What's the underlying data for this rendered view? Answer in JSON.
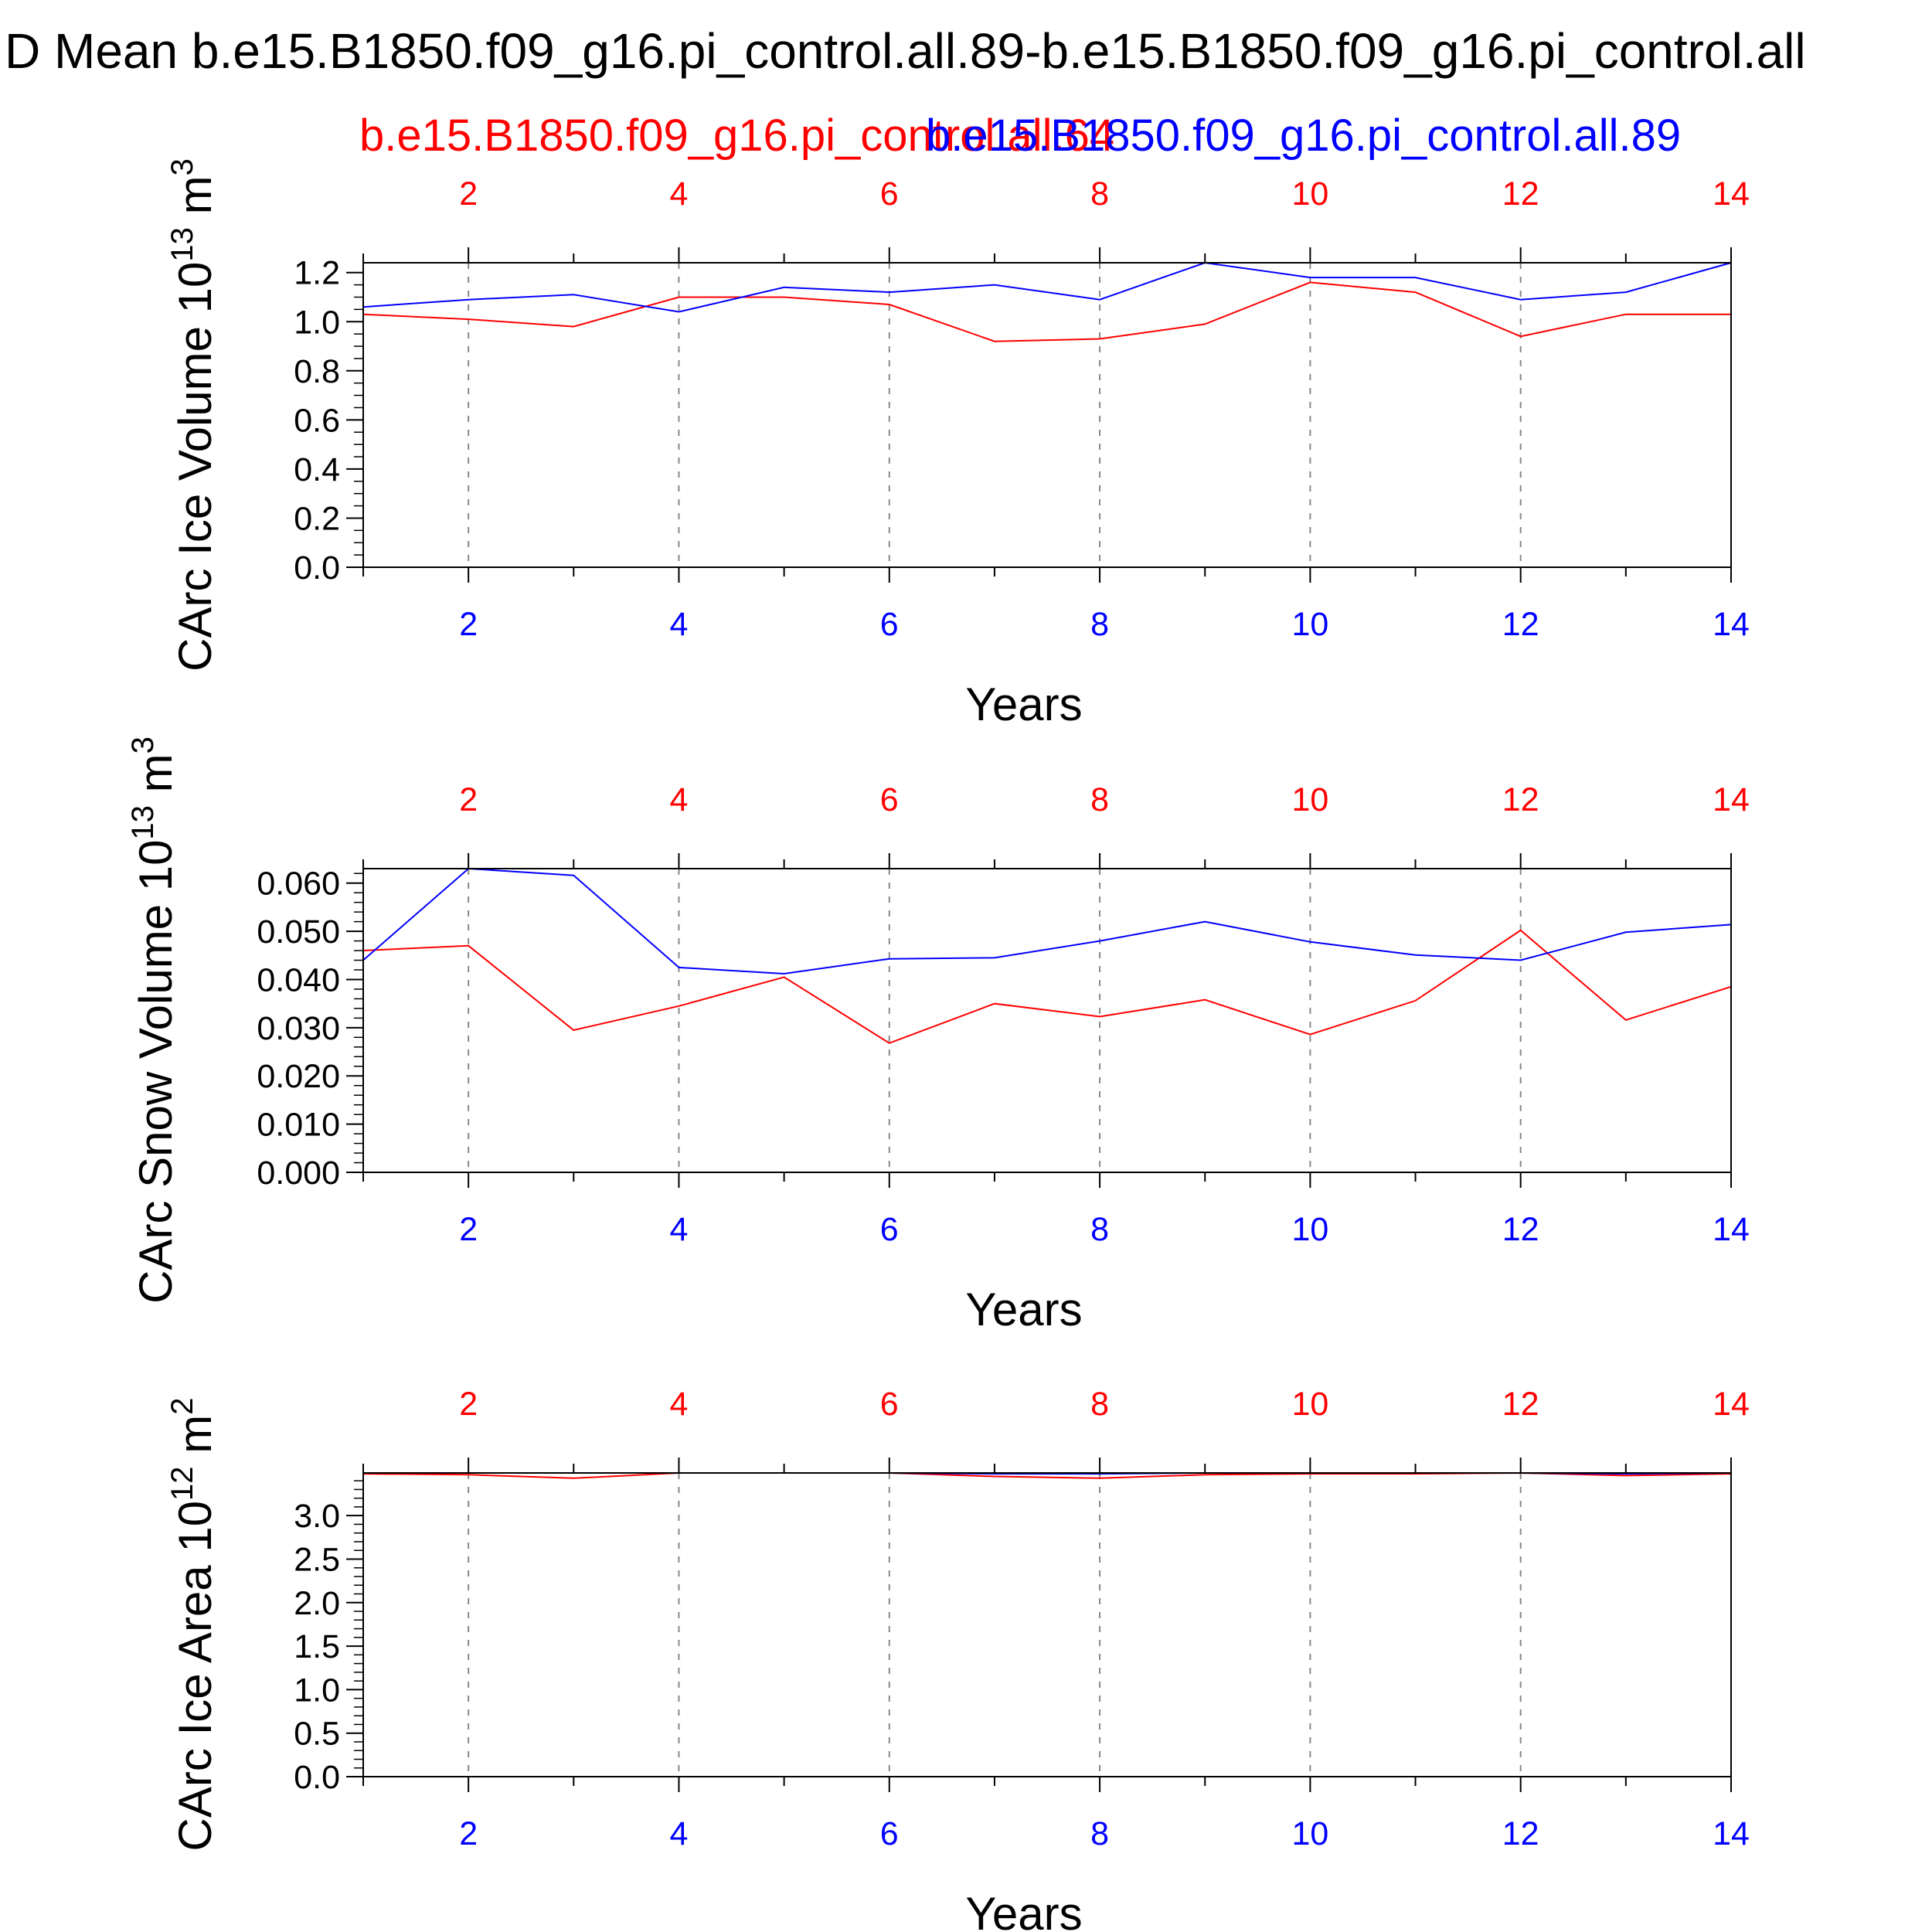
{
  "title": "D Mean b.e15.B1850.f09_g16.pi_control.all.89-b.e15.B1850.f09_g16.pi_control.all",
  "case_names": {
    "red": "b.e15.B1850.f09_g16.pi_control.all.64",
    "blue": "b.e15.B1850.f09_g16.pi_control.all.89"
  },
  "colors": {
    "series_red": "#ff0000",
    "series_blue": "#0000ff",
    "axis": "#000000",
    "grid": "#888888"
  },
  "chart_data": [
    {
      "type": "line",
      "name": "ice-volume",
      "ylabel_main": "CArc Ice Volume 10",
      "ylabel_exp": "13",
      "ylabel_unit": " m",
      "ylabel_unit_exp": "3",
      "xlabel": "Years",
      "xlim": [
        1,
        14
      ],
      "ylim": [
        0.0,
        1.24
      ],
      "xticks": [
        2,
        4,
        6,
        8,
        10,
        12,
        14
      ],
      "yticks": [
        "0.0",
        "0.2",
        "0.4",
        "0.6",
        "0.8",
        "1.0",
        "1.2"
      ],
      "ytick_values": [
        0.0,
        0.2,
        0.4,
        0.6,
        0.8,
        1.0,
        1.2
      ],
      "yminor_step": 0.05,
      "x": [
        1,
        2,
        3,
        4,
        5,
        6,
        7,
        8,
        9,
        10,
        11,
        12,
        13,
        14
      ],
      "series": [
        {
          "name": "b.e15.B1850.f09_g16.pi_control.all.64",
          "color": "#ff0000",
          "values": [
            1.03,
            1.01,
            0.98,
            1.1,
            1.1,
            1.07,
            0.92,
            0.93,
            0.99,
            1.16,
            1.12,
            0.94,
            1.03,
            1.03
          ]
        },
        {
          "name": "b.e15.B1850.f09_g16.pi_control.all.89",
          "color": "#0000ff",
          "values": [
            1.06,
            1.09,
            1.11,
            1.04,
            1.14,
            1.12,
            1.15,
            1.09,
            1.24,
            1.18,
            1.18,
            1.09,
            1.12,
            1.24
          ]
        }
      ]
    },
    {
      "type": "line",
      "name": "snow-volume",
      "ylabel_main": "CArc Snow Volume 10",
      "ylabel_exp": "13",
      "ylabel_unit": " m",
      "ylabel_unit_exp": "3",
      "xlabel": "Years",
      "xlim": [
        1,
        14
      ],
      "ylim": [
        0.0,
        0.063
      ],
      "xticks": [
        2,
        4,
        6,
        8,
        10,
        12,
        14
      ],
      "yticks": [
        "0.000",
        "0.010",
        "0.020",
        "0.030",
        "0.040",
        "0.050",
        "0.060"
      ],
      "ytick_values": [
        0.0,
        0.01,
        0.02,
        0.03,
        0.04,
        0.05,
        0.06
      ],
      "yminor_step": 0.002,
      "x": [
        1,
        2,
        3,
        4,
        5,
        6,
        7,
        8,
        9,
        10,
        11,
        12,
        13,
        14
      ],
      "series": [
        {
          "name": "b.e15.B1850.f09_g16.pi_control.all.64",
          "color": "#ff0000",
          "values": [
            0.046,
            0.047,
            0.0295,
            0.0345,
            0.0405,
            0.0268,
            0.035,
            0.0323,
            0.0358,
            0.0286,
            0.0356,
            0.0502,
            0.0316,
            0.0385
          ]
        },
        {
          "name": "b.e15.B1850.f09_g16.pi_control.all.89",
          "color": "#0000ff",
          "values": [
            0.044,
            0.063,
            0.0616,
            0.0425,
            0.0412,
            0.0443,
            0.0445,
            0.048,
            0.052,
            0.0478,
            0.0451,
            0.044,
            0.0498,
            0.0514
          ]
        }
      ]
    },
    {
      "type": "line",
      "name": "ice-area",
      "ylabel_main": "CArc Ice Area 10",
      "ylabel_exp": "12",
      "ylabel_unit": " m",
      "ylabel_unit_exp": "2",
      "xlabel": "Years",
      "xlim": [
        1,
        14
      ],
      "ylim": [
        0.0,
        3.49
      ],
      "xticks": [
        2,
        4,
        6,
        8,
        10,
        12,
        14
      ],
      "yticks": [
        "0.0",
        "0.5",
        "1.0",
        "1.5",
        "2.0",
        "2.5",
        "3.0"
      ],
      "ytick_values": [
        0.0,
        0.5,
        1.0,
        1.5,
        2.0,
        2.5,
        3.0
      ],
      "yminor_step": 0.1,
      "x": [
        1,
        2,
        3,
        4,
        5,
        6,
        7,
        8,
        9,
        10,
        11,
        12,
        13,
        14
      ],
      "series": [
        {
          "name": "b.e15.B1850.f09_g16.pi_control.all.64",
          "color": "#ff0000",
          "values": [
            3.48,
            3.47,
            3.43,
            3.49,
            3.49,
            3.49,
            3.45,
            3.43,
            3.47,
            3.48,
            3.48,
            3.49,
            3.46,
            3.48
          ]
        },
        {
          "name": "b.e15.B1850.f09_g16.pi_control.all.89",
          "color": "#0000ff",
          "values": [
            3.49,
            3.49,
            3.49,
            3.49,
            3.49,
            3.49,
            3.48,
            3.48,
            3.49,
            3.49,
            3.49,
            3.49,
            3.48,
            3.49
          ]
        }
      ]
    }
  ]
}
